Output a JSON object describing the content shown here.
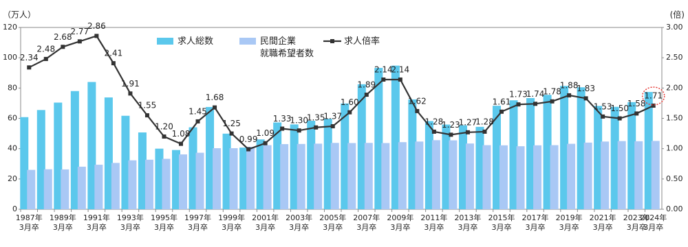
{
  "chart_data": {
    "type": "bar-line",
    "y_label": "（万人）",
    "y2_label": "(倍)",
    "categories": [
      "1987年\n3月卒",
      null,
      "1989年\n3月卒",
      null,
      "1991年\n3月卒",
      null,
      "1993年\n3月卒",
      null,
      "1995年\n3月卒",
      null,
      "1997年\n3月卒",
      null,
      "1999年\n3月卒",
      null,
      "2001年\n3月卒",
      null,
      "2003年\n3月卒",
      null,
      "2005年\n3月卒",
      null,
      "2007年\n3月卒",
      null,
      "2009年\n3月卒",
      null,
      "2011年\n3月卒",
      null,
      "2013年\n3月卒",
      null,
      "2015年\n3月卒",
      null,
      "2017年\n3月卒",
      null,
      "2019年\n3月卒",
      null,
      "2021年\n3月卒",
      null,
      "2023年\n3月卒",
      "2024年\n3月卒"
    ],
    "series": [
      {
        "name": "求人総数",
        "type": "bar",
        "color": "#5bc8ec",
        "values": [
          60.8,
          65.5,
          70.4,
          78.0,
          84.0,
          73.8,
          61.7,
          50.7,
          40.0,
          39.1,
          54.1,
          67.5,
          49.9,
          40.7,
          46.1,
          57.3,
          56.0,
          58.4,
          59.7,
          69.8,
          82.5,
          93.3,
          94.8,
          72.5,
          58.2,
          55.9,
          55.4,
          54.4,
          68.3,
          71.9,
          73.4,
          75.5,
          81.4,
          80.5,
          68.2,
          67.6,
          70.7,
          77.4
        ]
      },
      {
        "name": "民間企業\n就職希望者数",
        "type": "bar",
        "color": "#a9c8f5",
        "values": [
          26.0,
          26.4,
          26.3,
          28.1,
          29.4,
          30.6,
          32.3,
          32.7,
          33.3,
          36.2,
          37.3,
          40.3,
          40.3,
          41.2,
          42.3,
          43.0,
          43.1,
          43.3,
          43.8,
          43.7,
          43.8,
          43.7,
          44.3,
          44.7,
          45.6,
          45.5,
          43.4,
          42.3,
          42.2,
          41.6,
          42.2,
          42.3,
          43.2,
          44.0,
          44.7,
          45.0,
          44.9,
          45.1
        ]
      },
      {
        "name": "求人倍率",
        "type": "line",
        "axis": "y2",
        "color": "#333333",
        "values": [
          2.34,
          2.48,
          2.68,
          2.77,
          2.86,
          2.41,
          1.91,
          1.55,
          1.2,
          1.08,
          1.45,
          1.68,
          1.25,
          0.99,
          1.09,
          1.33,
          1.3,
          1.35,
          1.37,
          1.6,
          1.89,
          2.14,
          2.14,
          1.62,
          1.28,
          1.23,
          1.27,
          1.28,
          1.61,
          1.73,
          1.74,
          1.78,
          1.88,
          1.83,
          1.53,
          1.5,
          1.58,
          1.71
        ],
        "value_labels": [
          "2.34",
          "2.48",
          "2.68",
          "2.77",
          "2.86",
          "2.41",
          "1.91",
          "1.55",
          "1.20",
          "1.08",
          "1.45",
          "1.68",
          "1.25",
          "0.99",
          "1.09",
          "1.33",
          "1.30",
          "1.35",
          "1.37",
          "1.60",
          "1.89",
          "2.14",
          "2.14",
          "1.62",
          "1.28",
          "1.23",
          "1.27",
          "1.28",
          "1.61",
          "1.73",
          "1.74",
          "1.78",
          "1.88",
          "1.83",
          "1.53",
          "1.50",
          "1.58",
          "1.71"
        ]
      }
    ],
    "ylim": [
      0,
      120
    ],
    "yticks": [
      0,
      20,
      40,
      60,
      80,
      100,
      120
    ],
    "y2lim": [
      0,
      3
    ],
    "y2ticks": [
      {
        "value": 0,
        "label": "0.00"
      },
      {
        "value": 0.5,
        "label": "0.50"
      },
      {
        "value": 1,
        "label": "1.00"
      },
      {
        "value": 1.5,
        "label": "1.50"
      },
      {
        "value": 2,
        "label": "2.00"
      },
      {
        "value": 2.5,
        "label": "2.50"
      },
      {
        "value": 3,
        "label": "3.00"
      }
    ]
  }
}
